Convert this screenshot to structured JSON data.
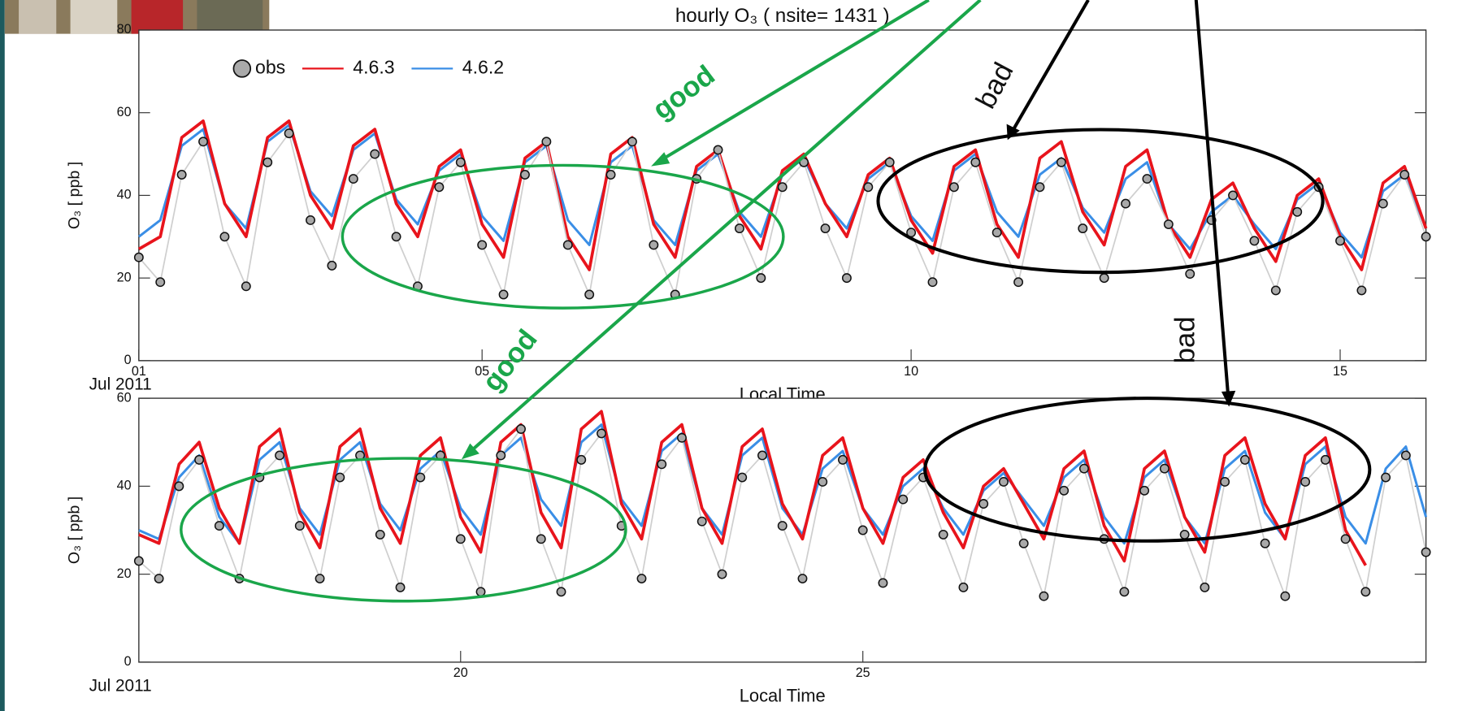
{
  "chart_data": [
    {
      "type": "line",
      "title": "hourly O₃ ( nsite= 1431 )",
      "ylabel": "O₃ [ ppb ]",
      "xlabel": "Local Time",
      "date_label": "Jul 2011",
      "legend": "upper left",
      "xlim": [
        1,
        16
      ],
      "ylim": [
        0,
        80
      ],
      "xticks": [
        {
          "value": 1,
          "label": "01"
        },
        {
          "value": 5,
          "label": "05"
        },
        10,
        15
      ],
      "yticks": [
        0,
        20,
        40,
        60,
        80
      ],
      "x": [
        1,
        1.25,
        1.5,
        1.75,
        2,
        2.25,
        2.5,
        2.75,
        3,
        3.25,
        3.5,
        3.75,
        4,
        4.25,
        4.5,
        4.75,
        5,
        5.25,
        5.5,
        5.75,
        6,
        6.25,
        6.5,
        6.75,
        7,
        7.25,
        7.5,
        7.75,
        8,
        8.25,
        8.5,
        8.75,
        9,
        9.25,
        9.5,
        9.75,
        10,
        10.25,
        10.5,
        10.75,
        11,
        11.25,
        11.5,
        11.75,
        12,
        12.25,
        12.5,
        12.75,
        13,
        13.25,
        13.5,
        13.75,
        14,
        14.25,
        14.5,
        14.75,
        15,
        15.25,
        15.5,
        15.75,
        16
      ],
      "series": [
        {
          "name": "obs",
          "style": "markers",
          "color": "#a9a9a9",
          "values": [
            25,
            19,
            45,
            53,
            30,
            18,
            48,
            55,
            34,
            23,
            44,
            50,
            30,
            18,
            42,
            48,
            28,
            16,
            45,
            53,
            28,
            16,
            45,
            53,
            28,
            16,
            44,
            51,
            32,
            20,
            42,
            48,
            32,
            20,
            42,
            48,
            31,
            19,
            42,
            48,
            31,
            19,
            42,
            48,
            32,
            20,
            38,
            44,
            33,
            21,
            34,
            40,
            29,
            17,
            36,
            42,
            29,
            17,
            38,
            45,
            30
          ]
        },
        {
          "name": "4.6.3",
          "style": "line",
          "color": "#e8141c",
          "values": [
            27,
            30,
            54,
            58,
            38,
            30,
            54,
            58,
            40,
            32,
            52,
            56,
            38,
            30,
            47,
            51,
            33,
            25,
            49,
            53,
            30,
            22,
            50,
            54,
            33,
            25,
            47,
            51,
            35,
            27,
            46,
            50,
            38,
            30,
            45,
            49,
            34,
            26,
            47,
            51,
            33,
            25,
            49,
            53,
            36,
            28,
            47,
            51,
            33,
            25,
            39,
            43,
            32,
            24,
            40,
            44,
            30,
            22,
            43,
            47,
            32
          ]
        },
        {
          "name": "4.6.2",
          "style": "line",
          "color": "#3a8ee6",
          "values": [
            30,
            34,
            52,
            56,
            38,
            32,
            53,
            57,
            41,
            35,
            51,
            55,
            39,
            33,
            46,
            50,
            35,
            29,
            48,
            52,
            34,
            28,
            48,
            52,
            34,
            28,
            46,
            50,
            36,
            30,
            45,
            49,
            38,
            32,
            44,
            48,
            35,
            29,
            46,
            50,
            36,
            30,
            45,
            49,
            37,
            31,
            44,
            48,
            33,
            27,
            36,
            40,
            33,
            27,
            39,
            43,
            31,
            25,
            41,
            45,
            32
          ]
        }
      ]
    },
    {
      "type": "line",
      "ylabel": "O₃ [ ppb ]",
      "xlabel": "Local Time",
      "date_label": "Jul 2011",
      "xlim": [
        16,
        32
      ],
      "ylim": [
        0,
        60
      ],
      "xticks": [
        20,
        25
      ],
      "yticks": [
        0,
        20,
        40,
        60
      ],
      "x": [
        16,
        16.25,
        16.5,
        16.75,
        17,
        17.25,
        17.5,
        17.75,
        18,
        18.25,
        18.5,
        18.75,
        19,
        19.25,
        19.5,
        19.75,
        20,
        20.25,
        20.5,
        20.75,
        21,
        21.25,
        21.5,
        21.75,
        22,
        22.25,
        22.5,
        22.75,
        23,
        23.25,
        23.5,
        23.75,
        24,
        24.25,
        24.5,
        24.75,
        25,
        25.25,
        25.5,
        25.75,
        26,
        26.25,
        26.5,
        26.75,
        27,
        27.25,
        27.5,
        27.75,
        28,
        28.25,
        28.5,
        28.75,
        29,
        29.25,
        29.5,
        29.75,
        30,
        30.25,
        30.5,
        30.75,
        31,
        31.25,
        31.5,
        31.75,
        32
      ],
      "series": [
        {
          "style": "markers",
          "color": "#a9a9a9",
          "values": [
            23,
            19,
            40,
            46,
            31,
            19,
            42,
            47,
            31,
            19,
            42,
            47,
            29,
            17,
            42,
            47,
            28,
            16,
            47,
            53,
            28,
            16,
            46,
            52,
            31,
            19,
            45,
            51,
            32,
            20,
            42,
            47,
            31,
            19,
            41,
            46,
            30,
            18,
            37,
            42,
            29,
            17,
            36,
            41,
            27,
            15,
            39,
            44,
            28,
            16,
            39,
            44,
            29,
            17,
            41,
            46,
            27,
            15,
            41,
            46,
            28,
            16,
            42,
            47,
            25
          ]
        },
        {
          "style": "line",
          "color": "#e8141c",
          "values": [
            29,
            27,
            45,
            50,
            35,
            27,
            49,
            53,
            34,
            26,
            49,
            53,
            35,
            27,
            47,
            51,
            33,
            25,
            50,
            54,
            34,
            26,
            53,
            57,
            36,
            28,
            50,
            54,
            35,
            27,
            49,
            53,
            36,
            28,
            47,
            51,
            35,
            27,
            42,
            46,
            34,
            26,
            40,
            44,
            36,
            28,
            44,
            48,
            31,
            23,
            44,
            48,
            33,
            25,
            47,
            51,
            36,
            28,
            47,
            51,
            30,
            22,
            null,
            null,
            null
          ]
        },
        {
          "style": "line",
          "color": "#3a8ee6",
          "values": [
            30,
            28,
            42,
            47,
            33,
            27,
            46,
            50,
            35,
            29,
            46,
            50,
            36,
            30,
            44,
            48,
            35,
            29,
            47,
            51,
            37,
            31,
            50,
            54,
            37,
            31,
            48,
            52,
            35,
            29,
            47,
            51,
            35,
            29,
            44,
            48,
            35,
            29,
            40,
            44,
            35,
            29,
            39,
            43,
            37,
            31,
            42,
            46,
            33,
            27,
            42,
            46,
            33,
            27,
            44,
            48,
            34,
            28,
            45,
            49,
            33,
            27,
            44,
            49,
            33
          ]
        }
      ]
    }
  ],
  "annotations": [
    {
      "text": "good"
    },
    {
      "text": "good"
    },
    {
      "text": "bad"
    },
    {
      "text": "bad"
    }
  ]
}
